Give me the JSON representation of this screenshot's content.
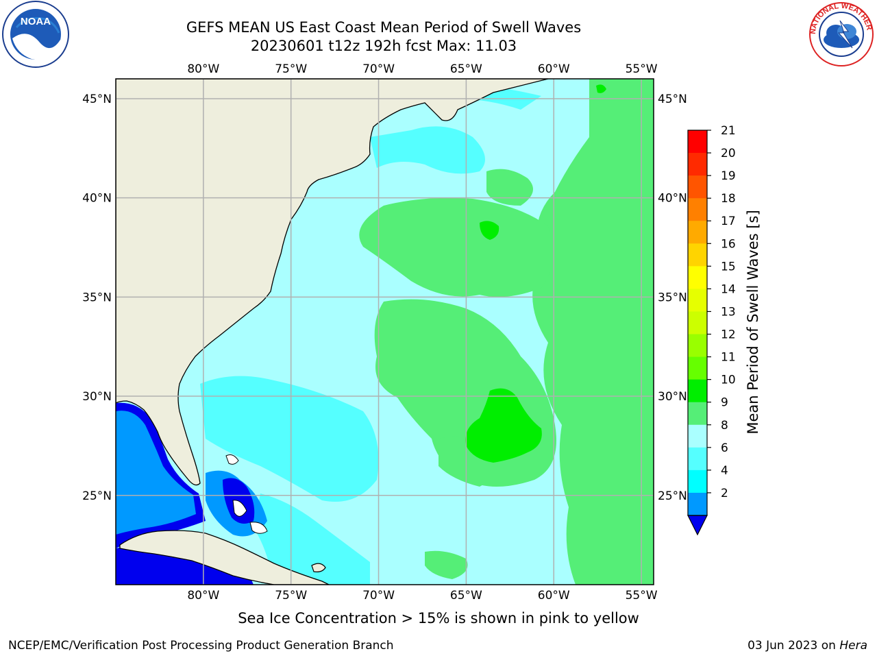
{
  "header": {
    "title_line1": "GEFS MEAN US East Coast Mean Period of Swell Waves",
    "title_line2": "20230601 t12z 192h fcst   Max: 11.03"
  },
  "logos": {
    "left": {
      "icon": "noaa-logo",
      "text": "NOAA"
    },
    "right": {
      "icon": "nws-logo",
      "text": "NATIONAL WEATHER SERVICE"
    }
  },
  "map": {
    "lon_labels": [
      "80°W",
      "75°W",
      "70°W",
      "65°W",
      "60°W",
      "55°W"
    ],
    "lat_labels": [
      "45°N",
      "40°N",
      "35°N",
      "30°N",
      "25°N"
    ],
    "extent": {
      "lon_min": -85,
      "lon_max": -54.3,
      "lat_min": 20.5,
      "lat_max": 46
    },
    "colors": {
      "land": "#eeeedd",
      "grid": "#b0b0b0",
      "coast": "#000000"
    }
  },
  "colorbar": {
    "label": "Mean Period of Swell Waves [s]",
    "ticks": [
      "21",
      "20",
      "19",
      "18",
      "17",
      "16",
      "15",
      "14",
      "13",
      "12",
      "11",
      "10",
      "9",
      "8",
      "6",
      "4",
      "2"
    ],
    "colors": [
      "#ff0000",
      "#ff2a00",
      "#ff5500",
      "#ff8000",
      "#ffaa00",
      "#ffd400",
      "#ffff00",
      "#e6ff00",
      "#ccff00",
      "#99ff00",
      "#66ff00",
      "#00ee00",
      "#55ee77",
      "#aaffff",
      "#55ffff",
      "#00ffff",
      "#0099ff"
    ],
    "under_color": "#0000ee"
  },
  "chart_data": {
    "type": "heatmap",
    "variable": "Mean Period of Swell Waves [s]",
    "max": 11.03,
    "levels": [
      2,
      4,
      6,
      8,
      9,
      10,
      11,
      12,
      13,
      14,
      15,
      16,
      17,
      18,
      19,
      20,
      21
    ]
  },
  "notes": {
    "ice": "Sea Ice Concentration > 15% is shown in pink to yellow"
  },
  "footer": {
    "left": "NCEP/EMC/Verification Post Processing Product Generation Branch",
    "right_prefix": "03 Jun 2023 on ",
    "right_host": "Hera"
  }
}
